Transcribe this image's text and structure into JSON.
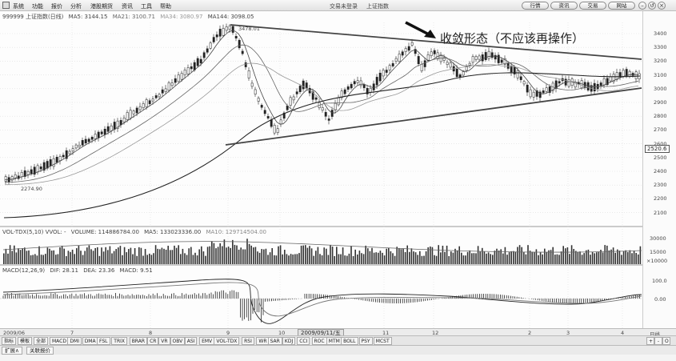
{
  "menubar": {
    "items": [
      "系统",
      "功能",
      "报价",
      "分析",
      "港股期货",
      "资讯",
      "工具",
      "帮助"
    ],
    "center": [
      "交易未登录",
      "上证指数"
    ],
    "buttons": [
      "行情",
      "资讯",
      "交易",
      "网站"
    ],
    "window_controls": [
      "–",
      "↺",
      "×"
    ]
  },
  "kline": {
    "title": "999999 上证指数(日线)",
    "ma": [
      {
        "label": "MA5: 3144.15",
        "color": "#333333"
      },
      {
        "label": "MA21: 3100.71",
        "color": "#666666"
      },
      {
        "label": "MA34: 3080.97",
        "color": "#999999"
      },
      {
        "label": "MA144: 3098.05",
        "color": "#333333"
      }
    ],
    "high_label": "3478.01",
    "low_label": "2274.90",
    "price_tag": "2520.6",
    "y_ticks": [
      "3400",
      "3300",
      "3200",
      "3100",
      "3000",
      "2900",
      "2800",
      "2700",
      "2600",
      "2500",
      "2400",
      "2300",
      "2200",
      "2100"
    ],
    "annotation": "收敛形态（不应该再操作）"
  },
  "volume": {
    "title": "VOL-TDX(5,10) VVOL: -",
    "volume_label": "VOLUME: 114886784.00",
    "ma5_label": "MA5: 133023336.00",
    "ma10_label": "MA10: 129714504.00",
    "y_ticks": [
      "30000",
      "15000",
      "×10000"
    ]
  },
  "macd": {
    "title": "MACD(12,26,9)",
    "dif": "DIF: 28.11",
    "dea": "DEA: 23.36",
    "macd": "MACD: 9.51",
    "y_ticks": [
      "100.0",
      "0.00"
    ]
  },
  "timeaxis": {
    "start": "2009/06",
    "date_label": "2009/09/11/五",
    "marks": [
      "7",
      "8",
      "9",
      "10",
      "11",
      "12",
      "2",
      "3",
      "4"
    ],
    "right_label": "日线"
  },
  "indicator_tabs": [
    "指标",
    "模板",
    "全部",
    "MACD",
    "DMI",
    "DMA",
    "FSL",
    "TRIX",
    "BRAR",
    "CR",
    "VR",
    "OBV",
    "ASI",
    "EMV",
    "VOL-TDX",
    "RSI",
    "WR",
    "SAR",
    "KDJ",
    "CCI",
    "ROC",
    "MTM",
    "BOLL",
    "PSY",
    "MCST"
  ],
  "scroll_buttons": [
    "+",
    "-",
    "O"
  ],
  "bottom_tabs": [
    "扩展∧",
    "关联报价"
  ]
}
